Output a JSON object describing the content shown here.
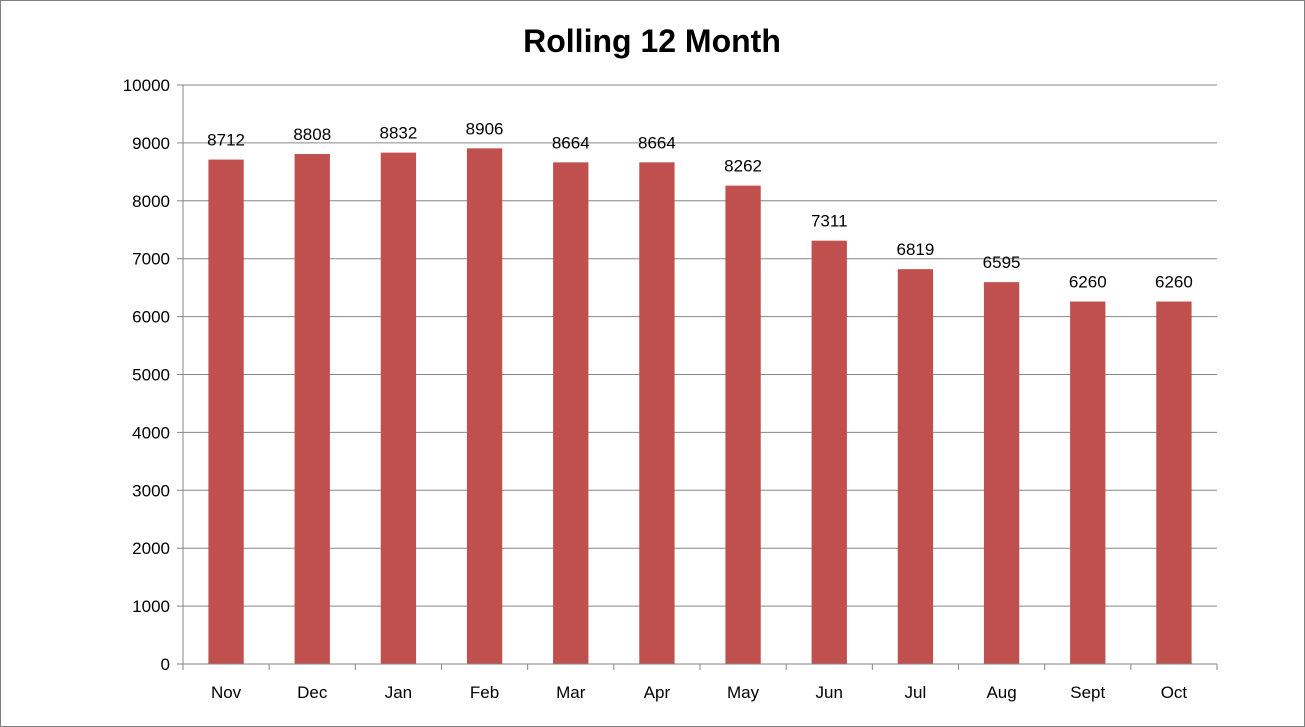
{
  "chart_data": {
    "type": "bar",
    "title": "Rolling 12 Month",
    "xlabel": "",
    "ylabel": "",
    "categories": [
      "Nov",
      "Dec",
      "Jan",
      "Feb",
      "Mar",
      "Apr",
      "May",
      "Jun",
      "Jul",
      "Aug",
      "Sept",
      "Oct"
    ],
    "values": [
      8712,
      8808,
      8832,
      8906,
      8664,
      8664,
      8262,
      7311,
      6819,
      6595,
      6260,
      6260
    ],
    "ylim": [
      0,
      10000
    ],
    "yticks": [
      0,
      1000,
      2000,
      3000,
      4000,
      5000,
      6000,
      7000,
      8000,
      9000,
      10000
    ],
    "data_labels": [
      "8712",
      "8808",
      "8832",
      "8906",
      "8664",
      "8664",
      "8262",
      "7311",
      "6819",
      "6595",
      "6260",
      "6260"
    ],
    "grid": true,
    "legend": "none",
    "bar_color": "#c0504d",
    "grid_color": "#868686"
  }
}
